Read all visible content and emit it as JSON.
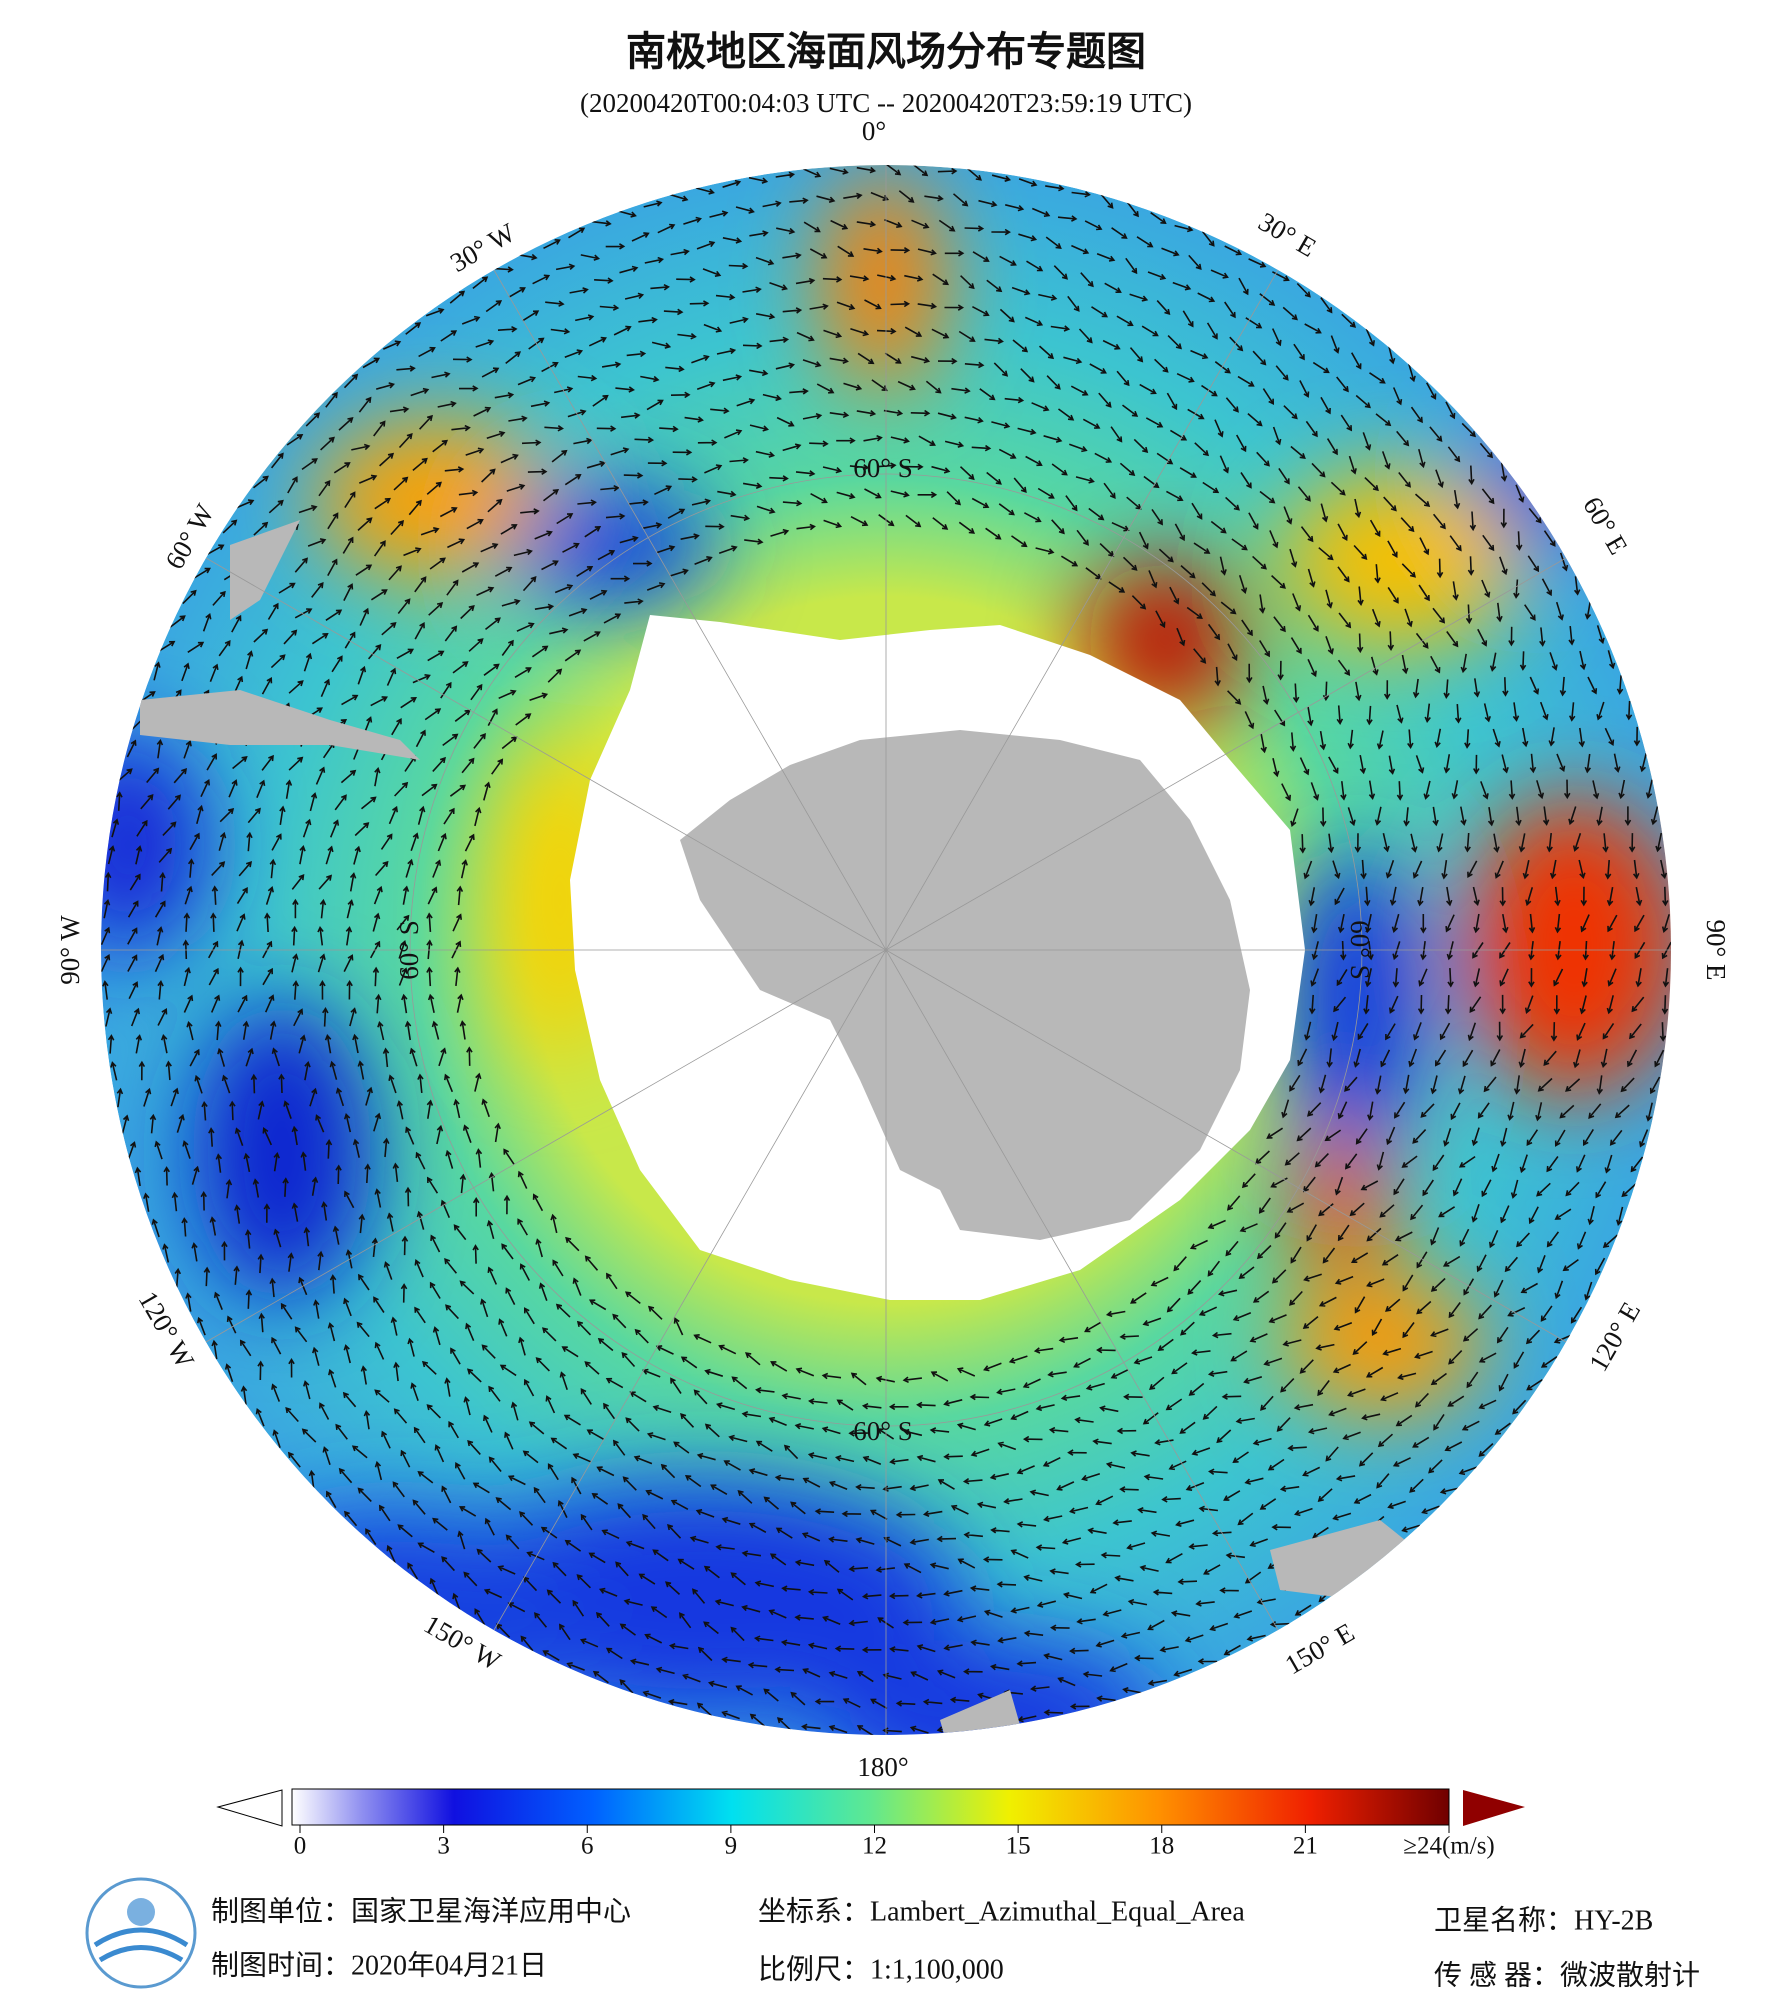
{
  "header": {
    "title": "南极地区海面风场分布专题图",
    "subtitle": "(20200420T00:04:03 UTC -- 20200420T23:59:19 UTC)"
  },
  "map": {
    "lon_labels": [
      "0°",
      "30° E",
      "60° E",
      "90° E",
      "120° E",
      "150° E",
      "180°",
      "150° W",
      "120° W",
      "90° W",
      "60° W",
      "30° W"
    ],
    "lat_labels": [
      "60° S",
      "60° S",
      "60° S",
      "60° S"
    ]
  },
  "colorbar": {
    "ticks": [
      0,
      3,
      6,
      9,
      12,
      15,
      18,
      21,
      {
        "value": 24,
        "label": "≥24(m/s)"
      }
    ]
  },
  "footer": {
    "unit": "制图单位：国家卫星海洋应用中心",
    "date": "制图时间：2020年04月21日",
    "crs": "坐标系：Lambert_Azimuthal_Equal_Area",
    "scale": "比例尺：1:1,100,000",
    "satellite": "卫星名称：HY-2B",
    "sensor": "传 感 器：微波散射计"
  }
}
